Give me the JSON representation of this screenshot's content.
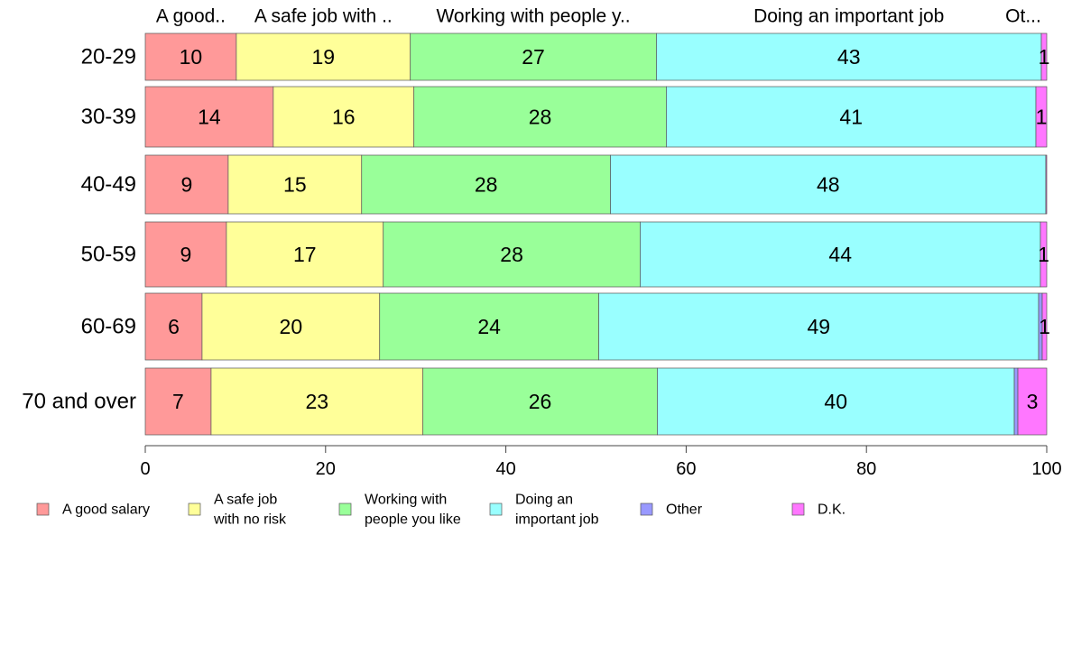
{
  "chart_data": {
    "type": "bar",
    "orientation": "horizontal",
    "stacked": true,
    "categories": [
      "20-29",
      "30-39",
      "40-49",
      "50-59",
      "60-69",
      "70 and over"
    ],
    "top_labels": [
      "A good..",
      "A safe job with ..",
      "Working with people y..",
      "Doing an important job",
      "Ot..."
    ],
    "series": [
      {
        "name": "A good salary",
        "legend_label": [
          "A good salary"
        ],
        "color": "#ff9999",
        "values": [
          10.1,
          14.2,
          9.2,
          9.0,
          6.3,
          7.3
        ]
      },
      {
        "name": "A safe job with no risk",
        "legend_label": [
          "A safe job",
          "with no risk"
        ],
        "color": "#ffff99",
        "values": [
          19.3,
          15.6,
          14.8,
          17.4,
          19.7,
          23.5
        ]
      },
      {
        "name": "Working with people you like",
        "legend_label": [
          "Working with",
          "people you like"
        ],
        "color": "#99ff99",
        "values": [
          27.3,
          28.0,
          27.6,
          28.5,
          24.3,
          26.0
        ]
      },
      {
        "name": "Doing an important job",
        "legend_label": [
          "Doing an",
          "important job"
        ],
        "color": "#99ffff",
        "values": [
          42.7,
          41.0,
          48.3,
          44.4,
          48.8,
          39.6
        ]
      },
      {
        "name": "Other",
        "legend_label": [
          "Other"
        ],
        "color": "#9999ff",
        "values": [
          0.0,
          0.0,
          0.0,
          0.0,
          0.4,
          0.4
        ]
      },
      {
        "name": "D.K.",
        "legend_label": [
          "D.K."
        ],
        "color": "#ff77ff",
        "values": [
          0.6,
          1.2,
          0.1,
          0.7,
          0.5,
          3.2
        ]
      }
    ],
    "data_labels": [
      [
        "10",
        "19",
        "27",
        "43",
        "",
        "1"
      ],
      [
        "14",
        "16",
        "28",
        "41",
        "",
        "1"
      ],
      [
        "9",
        "15",
        "28",
        "48",
        "",
        ""
      ],
      [
        "9",
        "17",
        "28",
        "44",
        "",
        "1"
      ],
      [
        "6",
        "20",
        "24",
        "49",
        "",
        "1"
      ],
      [
        "7",
        "23",
        "26",
        "40",
        "",
        "3"
      ]
    ],
    "xlim": [
      0,
      100
    ],
    "xticks": [
      0,
      20,
      40,
      60,
      80,
      100
    ],
    "title": "",
    "xlabel": "",
    "ylabel": "",
    "grid": false,
    "legend_position": "bottom"
  }
}
